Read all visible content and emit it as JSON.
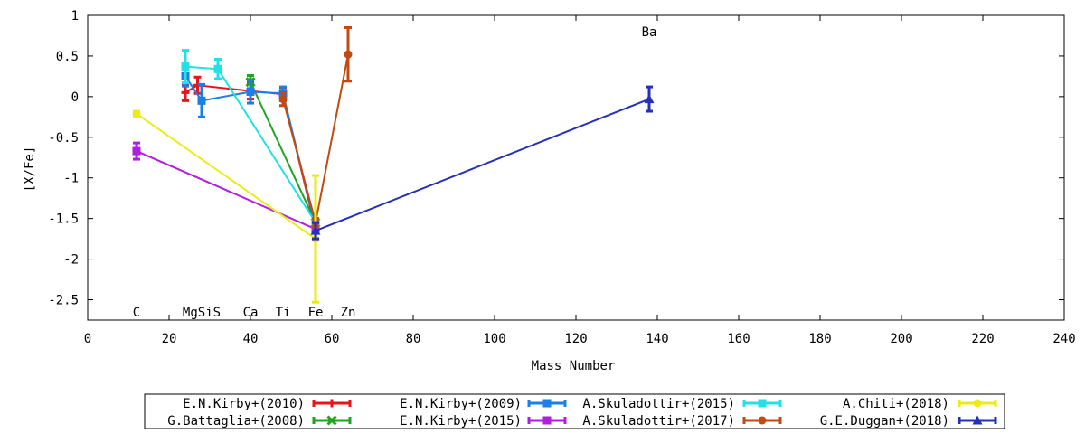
{
  "chart_data": {
    "type": "scatter",
    "title": "",
    "xlabel": "Mass Number",
    "ylabel": "[X/Fe]",
    "xlim": [
      0,
      240
    ],
    "ylim": [
      -2.75,
      1
    ],
    "x_ticks": [
      0,
      20,
      40,
      60,
      80,
      100,
      120,
      140,
      160,
      180,
      200,
      220,
      240
    ],
    "x_tick_labels": [
      "0",
      "20",
      "40",
      "60",
      "80",
      "100",
      "120",
      "140",
      "160",
      "180",
      "200",
      "220",
      "240"
    ],
    "y_ticks": [
      1,
      0.5,
      0,
      -0.5,
      -1,
      -1.5,
      -2,
      -2.5
    ],
    "y_tick_labels": [
      "1",
      "0.5",
      "0",
      "-0.5",
      "-1",
      "-1.5",
      "-2",
      "-2.5"
    ],
    "grid": false,
    "legend_position": "bottom",
    "element_labels": [
      {
        "text": "C",
        "x": 12,
        "y": -2.65
      },
      {
        "text": "MgSiS",
        "x": 28,
        "y": -2.65
      },
      {
        "text": "Ca",
        "x": 40,
        "y": -2.65
      },
      {
        "text": "Ti",
        "x": 48,
        "y": -2.65
      },
      {
        "text": "Fe",
        "x": 56,
        "y": -2.65
      },
      {
        "text": "Zn",
        "x": 64,
        "y": -2.65
      },
      {
        "text": "Ba",
        "x": 138,
        "y": 0.8
      }
    ],
    "series": [
      {
        "name": "E.N.Kirby+(2010)",
        "color": "#e8141a",
        "marker": "plus",
        "points": [
          {
            "x": 24,
            "y": 0.05,
            "err": 0.1
          },
          {
            "x": 27,
            "y": 0.14,
            "err": 0.1
          },
          {
            "x": 40,
            "y": 0.07,
            "err": 0.1
          },
          {
            "x": 48,
            "y": 0.03,
            "err": 0.08
          },
          {
            "x": 56,
            "y": -1.63,
            "err": 0.05
          }
        ]
      },
      {
        "name": "G.Battaglia+(2008)",
        "color": "#1fa51f",
        "marker": "cross",
        "points": [
          {
            "x": 40,
            "y": 0.18,
            "err": 0.08
          },
          {
            "x": 56,
            "y": -1.55,
            "err": 0.05
          }
        ]
      },
      {
        "name": "E.N.Kirby+(2009)",
        "color": "#1a7fe6",
        "marker": "square",
        "points": [
          {
            "x": 24,
            "y": 0.25,
            "err": 0.12
          },
          {
            "x": 28,
            "y": -0.05,
            "err": 0.2
          },
          {
            "x": 40,
            "y": 0.06,
            "err": 0.14
          },
          {
            "x": 48,
            "y": 0.04,
            "err": 0.08
          },
          {
            "x": 56,
            "y": -1.6,
            "err": 0.05
          }
        ]
      },
      {
        "name": "E.N.Kirby+(2015)",
        "color": "#b01ee0",
        "marker": "square",
        "points": [
          {
            "x": 12,
            "y": -0.67,
            "err": 0.1
          },
          {
            "x": 56,
            "y": -1.63,
            "err": 0.05
          }
        ]
      },
      {
        "name": "A.Skuladottir+(2015)",
        "color": "#22e0e6",
        "marker": "square",
        "points": [
          {
            "x": 24,
            "y": 0.37,
            "err": 0.2
          },
          {
            "x": 32,
            "y": 0.34,
            "err": 0.12
          },
          {
            "x": 56,
            "y": -1.55,
            "err": 0.05
          }
        ]
      },
      {
        "name": "A.Skuladottir+(2017)",
        "color": "#c24a10",
        "marker": "circle",
        "points": [
          {
            "x": 48,
            "y": -0.03,
            "err": 0.08
          },
          {
            "x": 56,
            "y": -1.55,
            "err": 0.05
          },
          {
            "x": 64,
            "y": 0.52,
            "err": 0.33
          }
        ]
      },
      {
        "name": "A.Chiti+(2018)",
        "color": "#ecec12",
        "marker": "circle",
        "points": [
          {
            "x": 12,
            "y": -0.21,
            "err": 0.03
          },
          {
            "x": 56,
            "y": -1.75,
            "err": 0.78
          }
        ]
      },
      {
        "name": "G.E.Duggan+(2018)",
        "color": "#2430b8",
        "marker": "triangle",
        "points": [
          {
            "x": 56,
            "y": -1.65,
            "err": 0.1
          },
          {
            "x": 138,
            "y": -0.03,
            "err": 0.15
          }
        ]
      }
    ]
  }
}
